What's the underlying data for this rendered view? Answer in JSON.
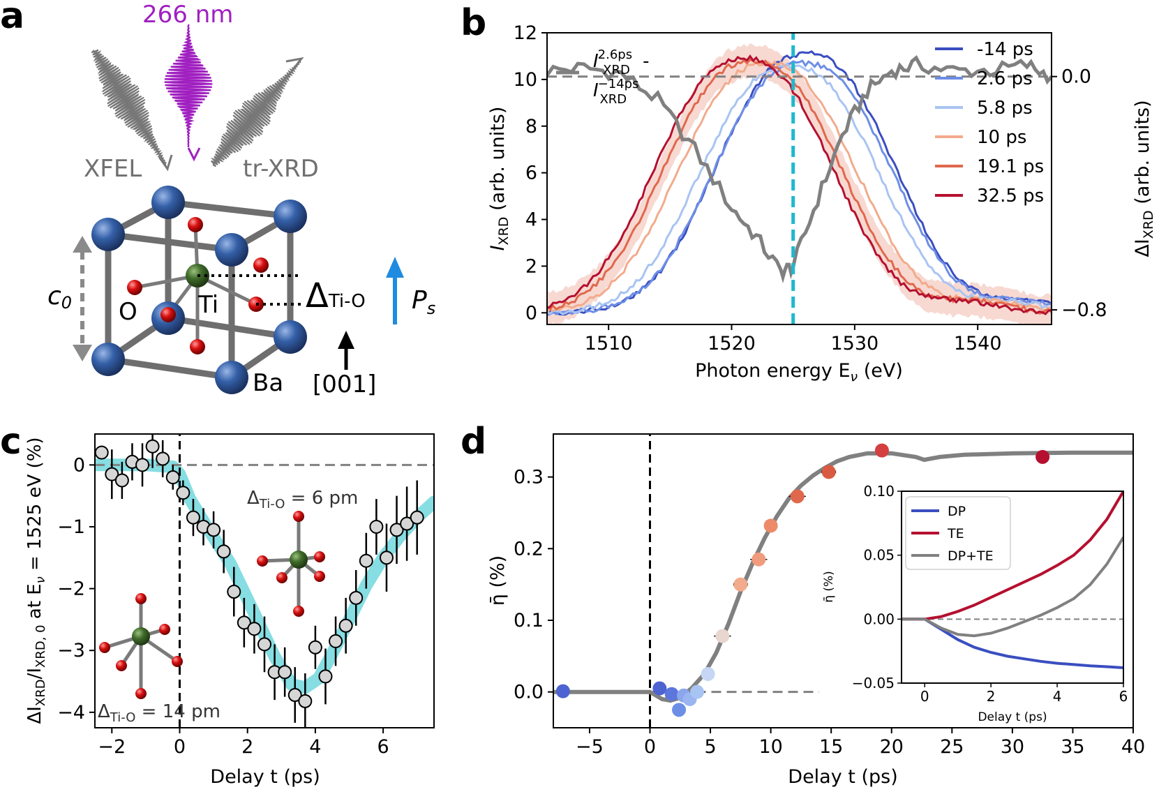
{
  "panels": {
    "a": {
      "letter": "a",
      "laser_label": "266 nm",
      "xfel_label": "XFEL",
      "trxrd_label": "tr-XRD",
      "c0_label": "c",
      "c0_sub": "0",
      "o_label": "O",
      "ti_label": "Ti",
      "ba_label": "Ba",
      "delta_label": "Δ",
      "delta_sub": "Ti-O",
      "ps_label": "P",
      "ps_sub": "s",
      "direction_label": "[001]"
    },
    "b": {
      "letter": "b"
    },
    "c": {
      "letter": "c",
      "annotation_top": "Δ",
      "annotation_top_sub": "Ti-O",
      "annotation_top_val": " = 6 pm",
      "annotation_bottom": "Δ",
      "annotation_bottom_sub": "Ti-O",
      "annotation_bottom_val": " = 14 pm"
    },
    "d": {
      "letter": "d"
    }
  },
  "colors": {
    "blue_dark": "#3a4ec0",
    "blue_mid": "#6d8ee6",
    "blue_light": "#a8c4f2",
    "orange_light": "#f2ab8c",
    "orange_mid": "#e0684d",
    "red_dark": "#b5102f",
    "gray": "#808080",
    "cyan": "#1fb8cf",
    "purple": "#a020c0",
    "ba_blue": "#3460a8",
    "ti_green": "#3f6b2a",
    "o_red": "#d81010"
  },
  "chart_data": [
    {
      "id": "b",
      "type": "line",
      "xlabel": "Photon energy E",
      "xlabel_sub": "ν",
      "xlabel_unit": " (eV)",
      "ylabel": "I",
      "ylabel_sub": "XRD",
      "ylabel_unit": " (arb. units)",
      "y2label": "ΔI",
      "y2label_sub": "XRD",
      "y2label_unit": " (arb. units)",
      "xlim": [
        1505,
        1546
      ],
      "ylim": [
        -0.5,
        12
      ],
      "y2lim": [
        -0.85,
        0.15
      ],
      "xticks": [
        1510,
        1520,
        1530,
        1540
      ],
      "yticks": [
        0,
        2,
        4,
        6,
        8,
        10,
        12
      ],
      "y2ticks": [
        0.0,
        -0.8
      ],
      "y2tick_labels": [
        "0.0",
        "−0.8"
      ],
      "vline_x": 1525,
      "series": [
        {
          "name": "-14 ps",
          "color": "#3a4ec0",
          "center": 1526.0,
          "peak": 11.1
        },
        {
          "name": "2.6 ps",
          "color": "#6d8ee6",
          "center": 1525.8,
          "peak": 10.7
        },
        {
          "name": "5.8 ps",
          "color": "#a8c4f2",
          "center": 1524.7,
          "peak": 10.6
        },
        {
          "name": "10 ps",
          "color": "#f2ab8c",
          "center": 1522.9,
          "peak": 10.7
        },
        {
          "name": "19.1 ps",
          "color": "#e0684d",
          "center": 1521.7,
          "peak": 10.8
        },
        {
          "name": "32.5 ps",
          "color": "#b5102f",
          "center": 1521.0,
          "peak": 10.9
        }
      ],
      "difference_label": "I",
      "difference_label_sup1": "2.6ps",
      "difference_label_sub1": "XRD",
      "difference_label_sup2": "−14ps",
      "difference_label_sub2": "XRD",
      "difference_label_dash": " -",
      "difference_curve": {
        "x": [
          1505,
          1508,
          1511,
          1514,
          1517,
          1520,
          1522,
          1524,
          1525,
          1527,
          1529,
          1531,
          1533,
          1535,
          1538,
          1541,
          1544,
          1546
        ],
        "y": [
          0.02,
          0.03,
          0.01,
          -0.08,
          -0.25,
          -0.45,
          -0.55,
          -0.67,
          -0.65,
          -0.42,
          -0.2,
          -0.05,
          0.02,
          0.04,
          0.02,
          0.02,
          0.04,
          0.0
        ]
      }
    },
    {
      "id": "c",
      "type": "scatter",
      "xlabel": "Delay t (ps)",
      "ylabel": "ΔI",
      "ylabel_sub1": "XRD",
      "ylabel_mid": "/I",
      "ylabel_sub2": "XRD, 0",
      "ylabel_end": " at E",
      "ylabel_sub3": "ν",
      "ylabel_tail": " = 1525 eV (%)",
      "xlim": [
        -2.5,
        7.5
      ],
      "ylim": [
        -4.25,
        0.5
      ],
      "xticks": [
        -2,
        0,
        2,
        4,
        6
      ],
      "xtick_labels": [
        "−2",
        "0",
        "2",
        "4",
        "6"
      ],
      "yticks": [
        0,
        -1,
        -2,
        -3,
        -4
      ],
      "ytick_labels": [
        "0",
        "−1",
        "−2",
        "−3",
        "−4"
      ],
      "points": {
        "x": [
          -2.3,
          -2.0,
          -1.7,
          -1.4,
          -1.1,
          -0.8,
          -0.5,
          -0.2,
          0.1,
          0.4,
          0.7,
          1.0,
          1.3,
          1.6,
          1.9,
          2.2,
          2.5,
          2.8,
          3.1,
          3.4,
          3.7,
          4.0,
          4.3,
          4.6,
          4.9,
          5.2,
          5.5,
          5.8,
          6.1,
          6.4,
          6.7,
          7.0
        ],
        "y": [
          0.2,
          -0.15,
          -0.25,
          0.05,
          0.0,
          0.3,
          0.1,
          -0.2,
          -0.45,
          -0.85,
          -1.0,
          -1.05,
          -1.4,
          -2.05,
          -2.55,
          -2.65,
          -2.9,
          -3.35,
          -3.35,
          -3.72,
          -3.82,
          -2.95,
          -3.42,
          -2.85,
          -2.6,
          -2.15,
          -1.55,
          -1.0,
          -1.5,
          -1.05,
          -0.95,
          -0.85
        ],
        "err": [
          0.1,
          0.4,
          0.3,
          0.3,
          0.35,
          0.35,
          0.3,
          0.2,
          0.2,
          0.3,
          0.3,
          0.3,
          0.35,
          0.4,
          0.4,
          0.4,
          0.45,
          0.45,
          0.4,
          0.45,
          0.45,
          0.35,
          0.45,
          0.4,
          0.45,
          0.45,
          0.45,
          0.45,
          0.55,
          0.55,
          0.6,
          0.6
        ]
      },
      "fit": {
        "x": [
          -2.5,
          -1.0,
          -0.2,
          0.0,
          0.3,
          0.8,
          1.5,
          2.2,
          2.8,
          3.3,
          3.7,
          4.1,
          4.5,
          5.0,
          5.5,
          6.0,
          6.5,
          7.0,
          7.5
        ],
        "y": [
          0.0,
          0.0,
          -0.03,
          -0.15,
          -0.55,
          -1.0,
          -1.6,
          -2.4,
          -3.1,
          -3.55,
          -3.6,
          -3.45,
          -3.05,
          -2.5,
          -1.95,
          -1.5,
          -1.15,
          -0.85,
          -0.6
        ]
      }
    },
    {
      "id": "d",
      "type": "scatter",
      "xlabel": "Delay t (ps)",
      "ylabel": "η̄ (%)",
      "xlim": [
        -8,
        40
      ],
      "ylim": [
        -0.05,
        0.36
      ],
      "xticks": [
        -5,
        0,
        5,
        10,
        15,
        20,
        25,
        30,
        35,
        40
      ],
      "xtick_labels": [
        "−5",
        "0",
        "5",
        "10",
        "15",
        "20",
        "25",
        "30",
        "35",
        "40"
      ],
      "yticks": [
        0.0,
        0.1,
        0.2,
        0.3
      ],
      "ytick_labels": [
        "0.0",
        "0.1",
        "0.2",
        "0.3"
      ],
      "points": {
        "x": [
          -7.2,
          0.8,
          1.8,
          2.4,
          2.8,
          3.3,
          3.9,
          4.8,
          6.0,
          7.5,
          9.0,
          10.0,
          12.2,
          14.8,
          19.2,
          32.5
        ],
        "y": [
          0.001,
          0.005,
          -0.003,
          -0.025,
          -0.005,
          -0.01,
          0.0,
          0.025,
          0.078,
          0.15,
          0.185,
          0.232,
          0.273,
          0.307,
          0.337,
          0.328
        ],
        "xerr": [
          0.0,
          0.5,
          0.4,
          0.3,
          0.4,
          0.4,
          0.6,
          0.4,
          0.7,
          0.6,
          0.7,
          0.5,
          0.7,
          0.6,
          0.4,
          0.5
        ],
        "colors": [
          "#4d63d1",
          "#4d63d1",
          "#5c76dc",
          "#6d8ee6",
          "#8ba6ec",
          "#9ab5f0",
          "#a8c4f2",
          "#c6d6f4",
          "#e8d6cf",
          "#f2ab8c",
          "#f09b7c",
          "#ec8a6a",
          "#e0684d",
          "#d95a42",
          "#d44040",
          "#b5102f"
        ]
      },
      "fit": {
        "x": [
          -8,
          -1,
          0,
          0.5,
          1.0,
          1.7,
          2.5,
          3.5,
          4.5,
          5.5,
          6.5,
          7.5,
          8.5,
          9.5,
          10.5,
          11.5,
          12.5,
          13.5,
          14.5,
          15.5,
          16.5,
          18,
          20,
          22,
          22.7,
          24,
          26,
          30,
          35,
          40
        ],
        "y": [
          0.0,
          0.0,
          0.0,
          -0.005,
          -0.01,
          -0.012,
          -0.008,
          0.006,
          0.025,
          0.055,
          0.095,
          0.14,
          0.18,
          0.215,
          0.245,
          0.27,
          0.288,
          0.302,
          0.313,
          0.322,
          0.328,
          0.333,
          0.333,
          0.328,
          0.324,
          0.328,
          0.331,
          0.333,
          0.334,
          0.334
        ]
      },
      "zero_dash_x": [
        0,
        14
      ],
      "inset": {
        "xlabel": "Delay t (ps)",
        "ylabel": "η̄ (%)",
        "xlim": [
          -0.7,
          6
        ],
        "ylim": [
          -0.05,
          0.1
        ],
        "xticks": [
          0,
          2,
          4,
          6
        ],
        "xtick_labels": [
          "0",
          "2",
          "4",
          "6"
        ],
        "yticks": [
          0.1,
          0.05,
          0.0,
          -0.05
        ],
        "ytick_labels": [
          "0.10",
          "0.05",
          "0.00",
          "−0.05"
        ],
        "series": [
          {
            "name": "DP",
            "color": "#3a4ec0",
            "x": [
              -0.7,
              0,
              0.5,
              1,
              1.5,
              2,
              2.5,
              3,
              3.5,
              4,
              4.5,
              5,
              5.5,
              6
            ],
            "y": [
              0,
              0,
              -0.008,
              -0.016,
              -0.022,
              -0.026,
              -0.029,
              -0.031,
              -0.033,
              -0.0345,
              -0.0355,
              -0.0365,
              -0.0372,
              -0.038
            ]
          },
          {
            "name": "TE",
            "color": "#b5102f",
            "x": [
              -0.7,
              0,
              0.5,
              1,
              1.5,
              2,
              2.5,
              3,
              3.5,
              4,
              4.5,
              5,
              5.5,
              6
            ],
            "y": [
              0,
              0,
              0.002,
              0.006,
              0.011,
              0.017,
              0.023,
              0.029,
              0.035,
              0.042,
              0.05,
              0.062,
              0.078,
              0.1
            ]
          },
          {
            "name": "DP+TE",
            "color": "#808080",
            "x": [
              -0.7,
              0,
              0.5,
              1,
              1.5,
              2,
              2.5,
              3,
              3.5,
              4,
              4.5,
              5,
              5.5,
              6
            ],
            "y": [
              0,
              0,
              -0.007,
              -0.012,
              -0.013,
              -0.011,
              -0.007,
              -0.002,
              0.003,
              0.009,
              0.016,
              0.027,
              0.043,
              0.064
            ]
          }
        ]
      }
    }
  ]
}
